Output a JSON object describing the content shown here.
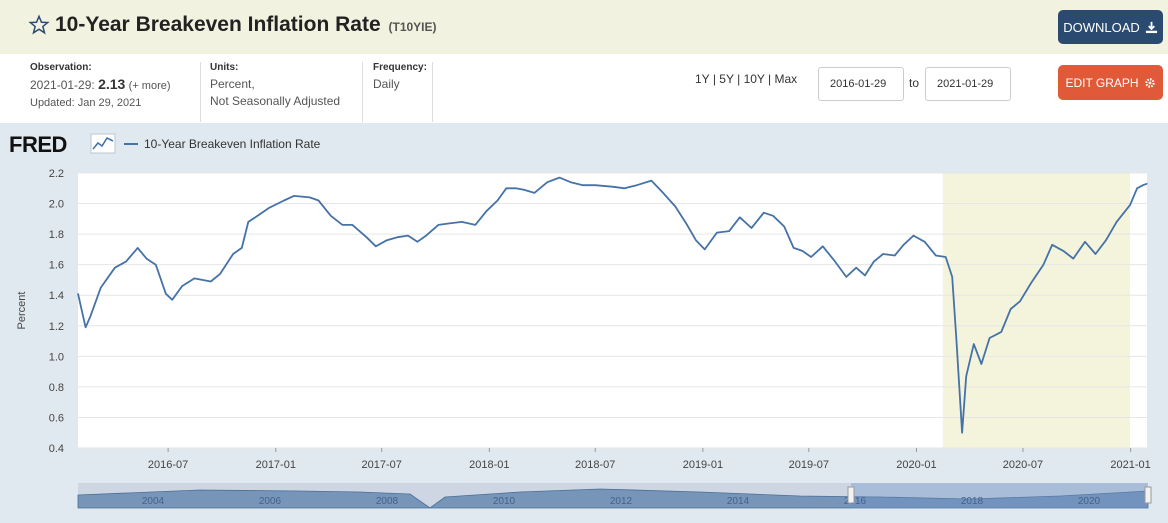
{
  "header": {
    "title": "10-Year Breakeven Inflation Rate",
    "series_code": "(T10YIE)",
    "download_label": "DOWNLOAD",
    "download_icon": "download-icon",
    "star_icon": "star-icon"
  },
  "meta": {
    "observation_label": "Observation:",
    "observation_date": "2021-01-29:",
    "observation_value": "2.13",
    "observation_more": "(+ more)",
    "updated": "Updated: Jan 29, 2021",
    "units_label": "Units:",
    "units_line1": "Percent,",
    "units_line2": "Not Seasonally Adjusted",
    "frequency_label": "Frequency:",
    "frequency_value": "Daily"
  },
  "controls": {
    "range_1y": "1Y",
    "range_5y": "5Y",
    "range_10y": "10Y",
    "range_max": "Max",
    "separator": "|",
    "start_date": "2016-01-29",
    "to_label": "to",
    "end_date": "2021-01-29",
    "edit_label": "EDIT GRAPH",
    "edit_icon": "gear-icon"
  },
  "colors": {
    "line": "#4572a7",
    "recession": "#f4f3dc",
    "download_button": "#2b4a6f",
    "edit_button": "#e05a3a",
    "title_bar": "#f2f2e0"
  },
  "chart_data": {
    "type": "line",
    "logo": "FRED",
    "legend": "10-Year Breakeven Inflation Rate",
    "ylabel": "Percent",
    "ylim": [
      0.4,
      2.2
    ],
    "y_ticks": [
      "0.4",
      "0.6",
      "0.8",
      "1.0",
      "1.2",
      "1.4",
      "1.6",
      "1.8",
      "2.0",
      "2.2"
    ],
    "x_range": [
      "2016-01-29",
      "2021-01-29"
    ],
    "x_ticks": [
      "2016-07",
      "2017-01",
      "2017-07",
      "2018-01",
      "2018-07",
      "2019-01",
      "2019-07",
      "2020-01",
      "2020-07",
      "2021-01"
    ],
    "shaded_period": [
      "2020-02-15",
      "2020-12-31"
    ],
    "grid": true,
    "navigator_labels": [
      "2004",
      "2006",
      "2008",
      "2010",
      "2012",
      "2014",
      "2016",
      "2018",
      "2020"
    ],
    "series": [
      {
        "name": "10-Year Breakeven Inflation Rate",
        "points": [
          [
            "2016-01-29",
            1.41
          ],
          [
            "2016-02-11",
            1.19
          ],
          [
            "2016-02-19",
            1.26
          ],
          [
            "2016-03-08",
            1.45
          ],
          [
            "2016-04-01",
            1.58
          ],
          [
            "2016-04-20",
            1.62
          ],
          [
            "2016-05-10",
            1.71
          ],
          [
            "2016-05-25",
            1.64
          ],
          [
            "2016-06-10",
            1.6
          ],
          [
            "2016-06-27",
            1.41
          ],
          [
            "2016-07-08",
            1.37
          ],
          [
            "2016-07-25",
            1.46
          ],
          [
            "2016-08-15",
            1.51
          ],
          [
            "2016-09-12",
            1.49
          ],
          [
            "2016-09-28",
            1.54
          ],
          [
            "2016-10-20",
            1.67
          ],
          [
            "2016-11-04",
            1.71
          ],
          [
            "2016-11-15",
            1.88
          ],
          [
            "2016-12-01",
            1.92
          ],
          [
            "2016-12-20",
            1.97
          ],
          [
            "2017-01-15",
            2.02
          ],
          [
            "2017-02-01",
            2.05
          ],
          [
            "2017-02-28",
            2.04
          ],
          [
            "2017-03-15",
            2.02
          ],
          [
            "2017-04-05",
            1.92
          ],
          [
            "2017-04-25",
            1.86
          ],
          [
            "2017-05-12",
            1.86
          ],
          [
            "2017-06-05",
            1.78
          ],
          [
            "2017-06-21",
            1.72
          ],
          [
            "2017-07-10",
            1.76
          ],
          [
            "2017-07-28",
            1.78
          ],
          [
            "2017-08-15",
            1.79
          ],
          [
            "2017-08-31",
            1.75
          ],
          [
            "2017-09-15",
            1.79
          ],
          [
            "2017-10-06",
            1.86
          ],
          [
            "2017-10-25",
            1.87
          ],
          [
            "2017-11-15",
            1.88
          ],
          [
            "2017-12-08",
            1.86
          ],
          [
            "2017-12-27",
            1.95
          ],
          [
            "2018-01-15",
            2.02
          ],
          [
            "2018-01-30",
            2.1
          ],
          [
            "2018-02-15",
            2.1
          ],
          [
            "2018-03-01",
            2.09
          ],
          [
            "2018-03-19",
            2.07
          ],
          [
            "2018-04-10",
            2.14
          ],
          [
            "2018-05-01",
            2.17
          ],
          [
            "2018-05-20",
            2.14
          ],
          [
            "2018-06-10",
            2.12
          ],
          [
            "2018-07-01",
            2.12
          ],
          [
            "2018-08-01",
            2.11
          ],
          [
            "2018-08-20",
            2.1
          ],
          [
            "2018-09-10",
            2.12
          ],
          [
            "2018-10-05",
            2.15
          ],
          [
            "2018-10-25",
            2.07
          ],
          [
            "2018-11-15",
            1.98
          ],
          [
            "2018-12-05",
            1.86
          ],
          [
            "2018-12-20",
            1.76
          ],
          [
            "2019-01-04",
            1.7
          ],
          [
            "2019-01-25",
            1.81
          ],
          [
            "2019-02-15",
            1.82
          ],
          [
            "2019-03-05",
            1.91
          ],
          [
            "2019-03-25",
            1.84
          ],
          [
            "2019-04-15",
            1.94
          ],
          [
            "2019-05-01",
            1.92
          ],
          [
            "2019-05-20",
            1.85
          ],
          [
            "2019-06-05",
            1.71
          ],
          [
            "2019-06-20",
            1.69
          ],
          [
            "2019-07-05",
            1.65
          ],
          [
            "2019-07-25",
            1.72
          ],
          [
            "2019-08-15",
            1.62
          ],
          [
            "2019-09-03",
            1.52
          ],
          [
            "2019-09-20",
            1.58
          ],
          [
            "2019-10-05",
            1.53
          ],
          [
            "2019-10-20",
            1.62
          ],
          [
            "2019-11-05",
            1.67
          ],
          [
            "2019-11-25",
            1.66
          ],
          [
            "2019-12-10",
            1.73
          ],
          [
            "2019-12-27",
            1.79
          ],
          [
            "2020-01-15",
            1.75
          ],
          [
            "2020-02-03",
            1.66
          ],
          [
            "2020-02-20",
            1.65
          ],
          [
            "2020-03-02",
            1.52
          ],
          [
            "2020-03-09",
            1.12
          ],
          [
            "2020-03-19",
            0.5
          ],
          [
            "2020-03-26",
            0.87
          ],
          [
            "2020-04-08",
            1.08
          ],
          [
            "2020-04-21",
            0.95
          ],
          [
            "2020-05-05",
            1.12
          ],
          [
            "2020-05-25",
            1.16
          ],
          [
            "2020-06-10",
            1.31
          ],
          [
            "2020-06-26",
            1.36
          ],
          [
            "2020-07-15",
            1.48
          ],
          [
            "2020-08-05",
            1.6
          ],
          [
            "2020-08-20",
            1.73
          ],
          [
            "2020-09-08",
            1.69
          ],
          [
            "2020-09-25",
            1.64
          ],
          [
            "2020-10-15",
            1.75
          ],
          [
            "2020-11-02",
            1.67
          ],
          [
            "2020-11-20",
            1.76
          ],
          [
            "2020-12-08",
            1.88
          ],
          [
            "2020-12-31",
            1.99
          ],
          [
            "2021-01-12",
            2.1
          ],
          [
            "2021-01-22",
            2.12
          ],
          [
            "2021-01-29",
            2.13
          ]
        ]
      }
    ]
  }
}
